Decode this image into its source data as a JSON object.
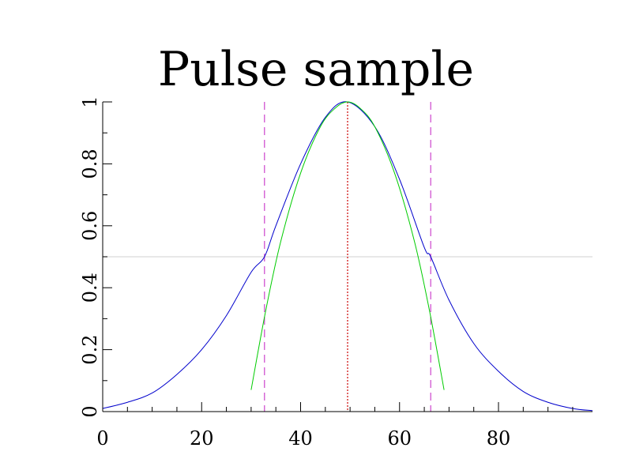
{
  "chart_data": {
    "type": "line",
    "title": "Pulse sample",
    "xlabel": "",
    "ylabel": "",
    "xlim": [
      0,
      99
    ],
    "ylim": [
      0,
      1
    ],
    "x_ticks": [
      0,
      20,
      40,
      60,
      80
    ],
    "x_tick_labels": [
      "0",
      "20",
      "40",
      "60",
      "80"
    ],
    "y_ticks": [
      0,
      0.2,
      0.4,
      0.6,
      0.8,
      1
    ],
    "y_tick_labels": [
      "0",
      "0.2",
      "0.4",
      "0.6",
      "0.8",
      "1"
    ],
    "grid": false,
    "series": [
      {
        "color": "#0000cc",
        "style": "solid",
        "x": [
          0,
          5,
          10,
          15,
          20,
          25,
          30,
          32.7,
          35,
          40,
          45,
          49.5,
          55,
          60,
          65,
          66.3,
          70,
          75,
          80,
          85,
          90,
          95,
          99
        ],
        "y": [
          0.01,
          0.03,
          0.06,
          0.12,
          0.2,
          0.31,
          0.45,
          0.5,
          0.6,
          0.8,
          0.95,
          1.0,
          0.92,
          0.75,
          0.53,
          0.5,
          0.36,
          0.22,
          0.13,
          0.065,
          0.03,
          0.01,
          0.003
        ]
      },
      {
        "color": "#00cc00",
        "style": "solid",
        "x": [
          30,
          33,
          36,
          40,
          44,
          47,
          49.5,
          52,
          55,
          59,
          63,
          66,
          69
        ],
        "y": [
          0.07,
          0.33,
          0.55,
          0.77,
          0.92,
          0.98,
          1.0,
          0.98,
          0.92,
          0.77,
          0.55,
          0.33,
          0.07
        ]
      }
    ],
    "reference_lines": [
      {
        "orientation": "horizontal",
        "value": 0.5,
        "color": "#d9d9d9",
        "style": "solid"
      },
      {
        "orientation": "vertical",
        "value": 32.7,
        "color": "#cc44cc",
        "style": "dashed"
      },
      {
        "orientation": "vertical",
        "value": 49.5,
        "color": "#cc0000",
        "style": "dotted"
      },
      {
        "orientation": "vertical",
        "value": 66.3,
        "color": "#cc44cc",
        "style": "dashed"
      }
    ]
  }
}
